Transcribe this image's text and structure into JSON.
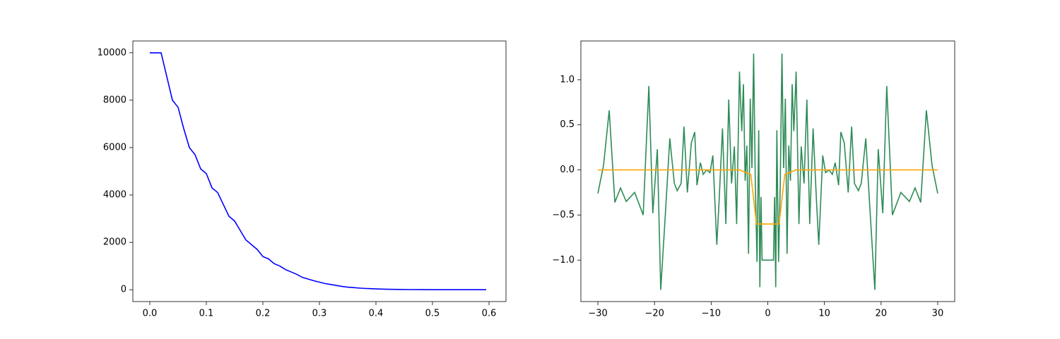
{
  "chart_data": [
    {
      "type": "line",
      "xlim": [
        -0.03,
        0.63
      ],
      "ylim": [
        -500,
        10500
      ],
      "xticks": [
        {
          "value": 0,
          "label": "0.0"
        },
        0.1,
        0.2,
        0.3,
        0.4,
        0.5,
        0.6
      ],
      "yticks": [
        0,
        2000,
        4000,
        6000,
        8000,
        10000
      ],
      "series": [
        {
          "color": "#0000ff",
          "x": [
            0,
            0.01,
            0.02,
            0.03,
            0.04,
            0.05,
            0.06,
            0.07,
            0.08,
            0.09,
            0.1,
            0.11,
            0.12,
            0.13,
            0.14,
            0.15,
            0.16,
            0.17,
            0.18,
            0.19,
            0.2,
            0.21,
            0.22,
            0.23,
            0.24,
            0.25,
            0.26,
            0.27,
            0.28,
            0.29,
            0.3,
            0.31,
            0.32,
            0.33,
            0.34,
            0.35,
            0.36,
            0.37,
            0.38,
            0.39,
            0.4,
            0.42,
            0.44,
            0.46,
            0.48,
            0.5,
            0.55,
            0.595
          ],
          "values": [
            10000,
            10000,
            10000,
            9000,
            8000,
            7700,
            6800,
            6000,
            5700,
            5100,
            4900,
            4300,
            4100,
            3600,
            3100,
            2900,
            2500,
            2100,
            1900,
            1700,
            1400,
            1300,
            1100,
            1000,
            850,
            750,
            650,
            520,
            450,
            380,
            320,
            260,
            220,
            180,
            140,
            110,
            90,
            70,
            55,
            45,
            35,
            20,
            12,
            7,
            4,
            2,
            1,
            0
          ]
        }
      ]
    },
    {
      "type": "line",
      "xlim": [
        -33,
        33
      ],
      "ylim": [
        -1.46,
        1.43
      ],
      "xticks": [
        {
          "value": -30,
          "label": "−30"
        },
        {
          "value": -20,
          "label": "−20"
        },
        {
          "value": -10,
          "label": "−10"
        },
        0,
        10,
        20,
        30
      ],
      "yticks": [
        {
          "value": -1,
          "label": "−1.0"
        },
        {
          "value": -0.5,
          "label": "−0.5"
        },
        {
          "value": 0,
          "label": "0.0"
        },
        0.5,
        {
          "value": 1,
          "label": "1.0"
        }
      ],
      "series": [
        {
          "color": "#2e8b57",
          "x": [
            -30,
            -29,
            -28,
            -27,
            -26,
            -25,
            -23.5,
            -22,
            -21,
            -20.3,
            -19.5,
            -18.9,
            -18,
            -17.3,
            -16.5,
            -16,
            -15.3,
            -14.8,
            -14.2,
            -13.5,
            -12.9,
            -12.5,
            -11.9,
            -11.4,
            -10.8,
            -10.2,
            -9.7,
            -9,
            -8.6,
            -8,
            -7.4,
            -6.9,
            -6.4,
            -5.9,
            -5.5,
            -5,
            -4.6,
            -4.3,
            -4,
            -3.7,
            -3.4,
            -3.1,
            -2.8,
            -2.5,
            -2.2,
            -1.9,
            -1.6,
            -1.4,
            -1.2,
            -1,
            1,
            1.2,
            1.4,
            1.6,
            1.9,
            2.2,
            2.5,
            2.8,
            3.1,
            3.4,
            3.7,
            4,
            4.3,
            4.6,
            5,
            5.5,
            5.9,
            6.4,
            6.9,
            7.4,
            8,
            8.6,
            9,
            9.7,
            10.2,
            10.8,
            11.4,
            11.9,
            12.5,
            12.9,
            13.5,
            14.2,
            14.8,
            15.3,
            16,
            16.5,
            17.3,
            18,
            18.9,
            19.5,
            20.3,
            21,
            22,
            23.5,
            25,
            26,
            27,
            28,
            29,
            30
          ],
          "values": [
            -0.26,
            0.05,
            0.66,
            -0.36,
            -0.2,
            -0.35,
            -0.25,
            -0.5,
            0.93,
            -0.48,
            0.23,
            -1.33,
            -0.4,
            0.35,
            -0.15,
            -0.23,
            -0.15,
            0.48,
            -0.25,
            0.3,
            0.42,
            -0.17,
            0.08,
            -0.05,
            0,
            -0.03,
            0.16,
            -0.83,
            -0.35,
            0.46,
            -0.6,
            0.78,
            -0.15,
            0.26,
            -0.6,
            1.09,
            0.43,
            0.95,
            -0.12,
            0.27,
            -0.93,
            0.79,
            0.02,
            1.29,
            -0.17,
            -1.02,
            0.44,
            -1.3,
            -0.3,
            -1.0,
            -1.0,
            -0.3,
            -1.3,
            0.44,
            -1.02,
            -0.17,
            1.29,
            0.02,
            0.79,
            -0.93,
            0.27,
            -0.12,
            0.95,
            0.43,
            1.09,
            -0.6,
            0.26,
            -0.15,
            0.78,
            -0.6,
            0.46,
            -0.35,
            -0.83,
            0.16,
            -0.03,
            0,
            -0.05,
            0.08,
            -0.17,
            0.42,
            0.3,
            -0.25,
            0.48,
            -0.15,
            -0.23,
            -0.15,
            0.35,
            -0.4,
            -1.33,
            0.23,
            -0.48,
            0.93,
            -0.5,
            -0.25,
            -0.35,
            -0.2,
            -0.36,
            0.66,
            0.05,
            -0.26
          ]
        },
        {
          "color": "#ffa500",
          "x": [
            -30,
            -5,
            -3,
            -2,
            -1.5,
            1.5,
            2,
            3,
            5,
            30
          ],
          "values": [
            0,
            0,
            -0.05,
            -0.6,
            -0.6,
            -0.6,
            -0.6,
            -0.05,
            0,
            0
          ]
        }
      ]
    }
  ]
}
